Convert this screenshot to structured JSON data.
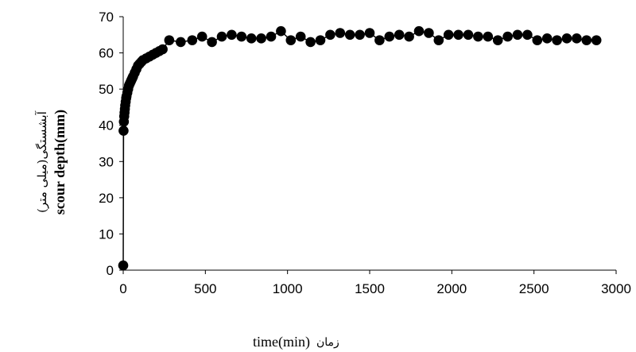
{
  "chart_data": {
    "type": "scatter",
    "title": "",
    "xlabel": "time(min)",
    "xlabel_persian": "زمان",
    "ylabel": "scour depth(mm)",
    "ylabel_persian": "آبشستگی(میلی متر)",
    "xlim": [
      0,
      3000
    ],
    "ylim": [
      0,
      70
    ],
    "x_ticks": [
      0,
      500,
      1000,
      1500,
      2000,
      2500,
      3000
    ],
    "y_ticks": [
      0,
      10,
      20,
      30,
      40,
      50,
      60,
      70
    ],
    "x_tick_labels": [
      "0",
      "500",
      "1000",
      "1500",
      "2000",
      "2500",
      "3000"
    ],
    "y_tick_labels": [
      "0",
      "10",
      "20",
      "30",
      "40",
      "50",
      "60",
      "70"
    ],
    "grid": false,
    "legend": false,
    "marker_color": "#000000",
    "line_color": "#000000",
    "series": [
      {
        "x": [
          0,
          2,
          4,
          6,
          8,
          10,
          12,
          15,
          18,
          20,
          25,
          30,
          35,
          40,
          45,
          50,
          55,
          60,
          70,
          80,
          90,
          100,
          110,
          120,
          140,
          160,
          180,
          200,
          220,
          240,
          280,
          350,
          420,
          480,
          540,
          600,
          660,
          720,
          780,
          840,
          900,
          960,
          1020,
          1080,
          1140,
          1200,
          1260,
          1320,
          1380,
          1440,
          1500,
          1560,
          1620,
          1680,
          1740,
          1800,
          1860,
          1920,
          1980,
          2040,
          2100,
          2160,
          2220,
          2280,
          2340,
          2400,
          2460,
          2520,
          2580,
          2640,
          2700,
          2760,
          2820,
          2880
        ],
        "y": [
          1.3,
          38.5,
          41,
          42.5,
          43.5,
          44.5,
          45.5,
          46.5,
          47.5,
          48,
          49,
          50,
          51,
          51.5,
          52,
          52.5,
          53,
          53.5,
          54.5,
          55.5,
          56.5,
          57,
          57.5,
          58,
          58.5,
          59,
          59.5,
          60,
          60.5,
          61,
          63.5,
          63,
          63.5,
          64.5,
          63,
          64.5,
          65,
          64.5,
          64,
          64,
          64.5,
          66,
          63.5,
          64.5,
          63,
          63.5,
          65,
          65.5,
          65,
          65,
          65.5,
          63.5,
          64.5,
          65,
          64.5,
          66,
          65.5,
          63.5,
          65,
          65,
          65,
          64.5,
          64.5,
          63.5,
          64.5,
          65,
          65,
          63.5,
          64,
          63.5,
          64,
          64,
          63.5,
          63.5
        ]
      }
    ]
  }
}
